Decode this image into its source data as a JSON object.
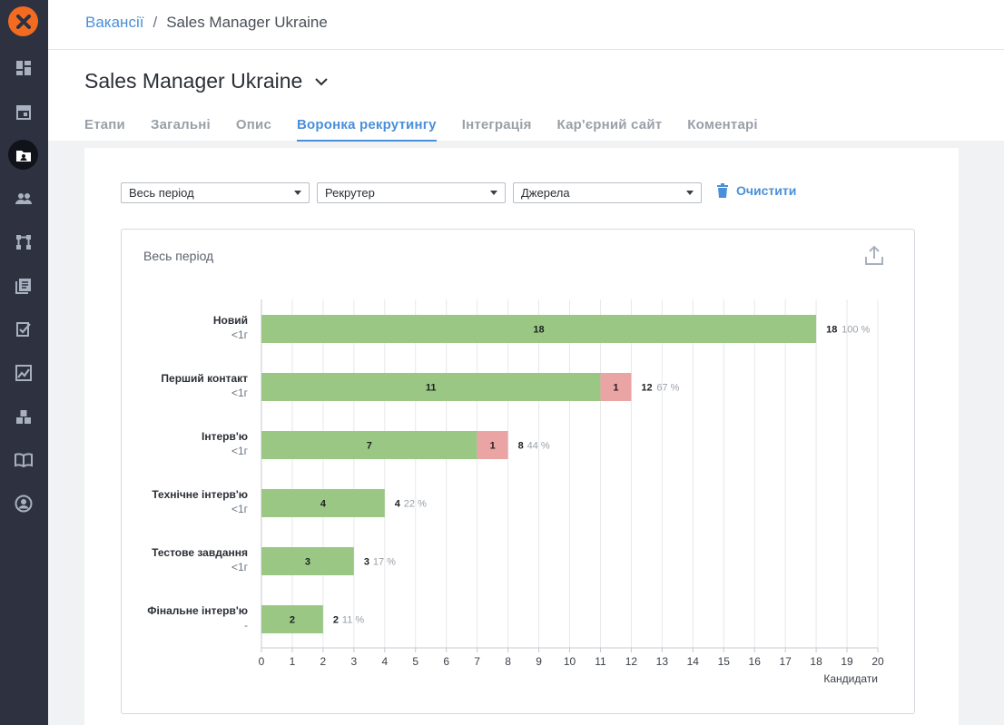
{
  "breadcrumb": {
    "link": "Вакансії",
    "separator": "/",
    "current": "Sales Manager Ukraine"
  },
  "page": {
    "title": "Sales Manager Ukraine"
  },
  "tabs": [
    {
      "label": "Етапи"
    },
    {
      "label": "Загальні"
    },
    {
      "label": "Опис"
    },
    {
      "label": "Воронка рекрутингу",
      "active": true
    },
    {
      "label": "Інтеграція"
    },
    {
      "label": "Кар'єрний сайт"
    },
    {
      "label": "Коментарі"
    }
  ],
  "filters": {
    "period": "Весь період",
    "recruiter": "Рекрутер",
    "sources": "Джерела",
    "clear_label": "Очистити"
  },
  "sidebar": {
    "icons": [
      "dashboard-icon",
      "calendar-icon",
      "vacancies-icon",
      "candidates-icon",
      "pipeline-icon",
      "library-icon",
      "tasks-icon",
      "analytics-icon",
      "integrations-icon",
      "knowledge-base-icon",
      "profile-icon"
    ],
    "active": "vacancies-icon"
  },
  "colors": {
    "accent": "#4a8fd9",
    "passed": "#9ac884",
    "rejected": "#eba4a4",
    "sidebar": "#2d3140",
    "brand": "#f26b21"
  },
  "chart_data": {
    "type": "bar",
    "title": "Весь період",
    "xlabel": "Кандидати",
    "xlim": [
      0,
      20
    ],
    "ticks": [
      0,
      1,
      2,
      3,
      4,
      5,
      6,
      7,
      8,
      9,
      10,
      11,
      12,
      13,
      14,
      15,
      16,
      17,
      18,
      19,
      20
    ],
    "stages": [
      {
        "name": "Новий",
        "time": "<1г",
        "passed": 18,
        "rejected": 0,
        "total": 18,
        "percent": "100 %"
      },
      {
        "name": "Перший контакт",
        "time": "<1г",
        "passed": 11,
        "rejected": 1,
        "total": 12,
        "percent": "67 %"
      },
      {
        "name": "Інтерв'ю",
        "time": "<1г",
        "passed": 7,
        "rejected": 1,
        "total": 8,
        "percent": "44 %"
      },
      {
        "name": "Технічне інтерв'ю",
        "time": "<1г",
        "passed": 4,
        "rejected": 0,
        "total": 4,
        "percent": "22 %"
      },
      {
        "name": "Тестове завдання",
        "time": "<1г",
        "passed": 3,
        "rejected": 0,
        "total": 3,
        "percent": "17 %"
      },
      {
        "name": "Фінальне інтерв'ю",
        "time": "-",
        "passed": 2,
        "rejected": 0,
        "total": 2,
        "percent": "11 %"
      }
    ]
  }
}
